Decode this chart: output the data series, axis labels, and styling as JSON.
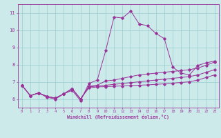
{
  "xlabel": "Windchill (Refroidissement éolien,°C)",
  "bg_color": "#cceaea",
  "line_color": "#993399",
  "grid_color": "#99cccc",
  "xlim": [
    -0.5,
    23.5
  ],
  "ylim": [
    5.5,
    11.5
  ],
  "xticks": [
    0,
    1,
    2,
    3,
    4,
    5,
    6,
    7,
    8,
    9,
    10,
    11,
    12,
    13,
    14,
    15,
    16,
    17,
    18,
    19,
    20,
    21,
    22,
    23
  ],
  "yticks": [
    6,
    7,
    8,
    9,
    10,
    11
  ],
  "series": [
    [
      6.8,
      6.2,
      6.35,
      6.1,
      6.0,
      6.3,
      6.5,
      5.9,
      6.9,
      7.1,
      8.8,
      10.75,
      10.7,
      11.1,
      10.35,
      10.25,
      9.8,
      9.5,
      7.85,
      7.5,
      7.4,
      7.95,
      8.1,
      8.2
    ],
    [
      6.8,
      6.2,
      6.35,
      6.15,
      6.05,
      6.3,
      6.6,
      6.0,
      6.75,
      6.8,
      7.05,
      7.1,
      7.2,
      7.3,
      7.4,
      7.45,
      7.5,
      7.55,
      7.6,
      7.65,
      7.7,
      7.8,
      7.95,
      8.15
    ],
    [
      6.8,
      6.2,
      6.35,
      6.15,
      6.05,
      6.3,
      6.6,
      6.0,
      6.7,
      6.75,
      6.8,
      6.85,
      6.9,
      6.95,
      7.0,
      7.05,
      7.1,
      7.15,
      7.2,
      7.25,
      7.3,
      7.4,
      7.55,
      7.7
    ],
    [
      6.8,
      6.2,
      6.35,
      6.15,
      6.05,
      6.3,
      6.6,
      6.0,
      6.65,
      6.7,
      6.72,
      6.74,
      6.76,
      6.78,
      6.8,
      6.82,
      6.85,
      6.88,
      6.92,
      6.96,
      7.0,
      7.1,
      7.25,
      7.4
    ]
  ]
}
